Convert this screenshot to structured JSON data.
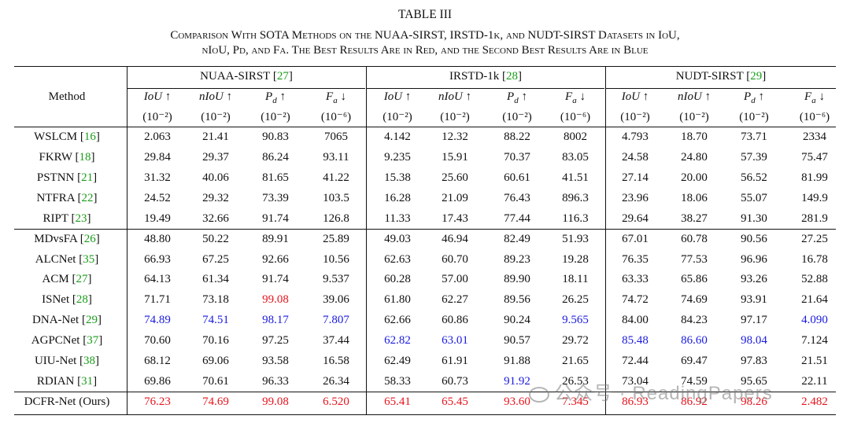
{
  "table_label": "TABLE III",
  "caption_line1": "Comparison With SOTA Methods on the NUAA-SIRST, IRSTD-1k, and NUDT-SIRST Datasets in IoU,",
  "caption_line2": "nIoU, Pd, and Fa. The Best Results Are in Red, and the Second Best Results Are in Blue",
  "header": {
    "method": "Method",
    "groups": [
      {
        "name": "NUAA-SIRST",
        "ref": "27"
      },
      {
        "name": "IRSTD-1k",
        "ref": "28"
      },
      {
        "name": "NUDT-SIRST",
        "ref": "29"
      }
    ],
    "metrics": [
      "IoU ↑",
      "nIoU ↑",
      "Pd ↑",
      "Fa ↓"
    ],
    "units": [
      "(10⁻²)",
      "(10⁻²)",
      "(10⁻²)",
      "(10⁻⁶)"
    ]
  },
  "rows": [
    {
      "method": "WSLCM",
      "ref": "16",
      "values": [
        "2.063",
        "21.41",
        "90.83",
        "7065",
        "4.142",
        "12.32",
        "88.22",
        "8002",
        "4.793",
        "18.70",
        "73.71",
        "2334"
      ],
      "colors": [
        "",
        "",
        "",
        "",
        "",
        "",
        "",
        "",
        "",
        "",
        "",
        ""
      ]
    },
    {
      "method": "FKRW",
      "ref": "18",
      "values": [
        "29.84",
        "29.37",
        "86.24",
        "93.11",
        "9.235",
        "15.91",
        "70.37",
        "83.05",
        "24.58",
        "24.80",
        "57.39",
        "75.47"
      ],
      "colors": [
        "",
        "",
        "",
        "",
        "",
        "",
        "",
        "",
        "",
        "",
        "",
        ""
      ]
    },
    {
      "method": "PSTNN",
      "ref": "21",
      "values": [
        "31.32",
        "40.06",
        "81.65",
        "41.22",
        "15.38",
        "25.60",
        "60.61",
        "41.51",
        "27.14",
        "20.00",
        "56.52",
        "81.99"
      ],
      "colors": [
        "",
        "",
        "",
        "",
        "",
        "",
        "",
        "",
        "",
        "",
        "",
        ""
      ]
    },
    {
      "method": "NTFRA",
      "ref": "22",
      "values": [
        "24.52",
        "29.32",
        "73.39",
        "103.5",
        "16.28",
        "21.09",
        "76.43",
        "896.3",
        "23.96",
        "18.06",
        "55.07",
        "149.9"
      ],
      "colors": [
        "",
        "",
        "",
        "",
        "",
        "",
        "",
        "",
        "",
        "",
        "",
        ""
      ]
    },
    {
      "method": "RIPT",
      "ref": "23",
      "values": [
        "19.49",
        "32.66",
        "91.74",
        "126.8",
        "11.33",
        "17.43",
        "77.44",
        "116.3",
        "29.64",
        "38.27",
        "91.30",
        "281.9"
      ],
      "colors": [
        "",
        "",
        "",
        "",
        "",
        "",
        "",
        "",
        "",
        "",
        "",
        ""
      ]
    },
    {
      "method": "MDvsFA",
      "ref": "26",
      "values": [
        "48.80",
        "50.22",
        "89.91",
        "25.89",
        "49.03",
        "46.94",
        "82.49",
        "51.93",
        "67.01",
        "60.78",
        "90.56",
        "27.25"
      ],
      "colors": [
        "",
        "",
        "",
        "",
        "",
        "",
        "",
        "",
        "",
        "",
        "",
        ""
      ]
    },
    {
      "method": "ALCNet",
      "ref": "35",
      "values": [
        "66.93",
        "67.25",
        "92.66",
        "10.56",
        "62.63",
        "60.70",
        "89.23",
        "19.28",
        "76.35",
        "77.53",
        "96.96",
        "16.78"
      ],
      "colors": [
        "",
        "",
        "",
        "",
        "",
        "",
        "",
        "",
        "",
        "",
        "",
        ""
      ]
    },
    {
      "method": "ACM",
      "ref": "27",
      "values": [
        "64.13",
        "61.34",
        "91.74",
        "9.537",
        "60.28",
        "57.00",
        "89.90",
        "18.11",
        "63.33",
        "65.86",
        "93.26",
        "52.88"
      ],
      "colors": [
        "",
        "",
        "",
        "",
        "",
        "",
        "",
        "",
        "",
        "",
        "",
        ""
      ]
    },
    {
      "method": "ISNet",
      "ref": "28",
      "values": [
        "71.71",
        "73.18",
        "99.08",
        "39.06",
        "61.80",
        "62.27",
        "89.56",
        "26.25",
        "74.72",
        "74.69",
        "93.91",
        "21.64"
      ],
      "colors": [
        "",
        "",
        "red",
        "",
        "",
        "",
        "",
        "",
        "",
        "",
        "",
        ""
      ]
    },
    {
      "method": "DNA-Net",
      "ref": "29",
      "values": [
        "74.89",
        "74.51",
        "98.17",
        "7.807",
        "62.66",
        "60.86",
        "90.24",
        "9.565",
        "84.00",
        "84.23",
        "97.17",
        "4.090"
      ],
      "colors": [
        "blue",
        "blue",
        "blue",
        "blue",
        "",
        "",
        "",
        "blue",
        "",
        "",
        "",
        "blue"
      ]
    },
    {
      "method": "AGPCNet",
      "ref": "37",
      "values": [
        "70.60",
        "70.16",
        "97.25",
        "37.44",
        "62.82",
        "63.01",
        "90.57",
        "29.72",
        "85.48",
        "86.60",
        "98.04",
        "7.124"
      ],
      "colors": [
        "",
        "",
        "",
        "",
        "blue",
        "blue",
        "",
        "",
        "blue",
        "blue",
        "blue",
        ""
      ]
    },
    {
      "method": "UIU-Net",
      "ref": "38",
      "values": [
        "68.12",
        "69.06",
        "93.58",
        "16.58",
        "62.49",
        "61.91",
        "91.88",
        "21.65",
        "72.44",
        "69.47",
        "97.83",
        "21.51"
      ],
      "colors": [
        "",
        "",
        "",
        "",
        "",
        "",
        "",
        "",
        "",
        "",
        "",
        ""
      ]
    },
    {
      "method": "RDIAN",
      "ref": "31",
      "values": [
        "69.86",
        "70.61",
        "96.33",
        "26.34",
        "58.33",
        "60.73",
        "91.92",
        "26.53",
        "73.04",
        "74.59",
        "95.65",
        "22.11"
      ],
      "colors": [
        "",
        "",
        "",
        "",
        "",
        "",
        "blue",
        "",
        "",
        "",
        "",
        ""
      ]
    },
    {
      "method": "DCFR-Net (Ours)",
      "ref": "",
      "values": [
        "76.23",
        "74.69",
        "99.08",
        "6.520",
        "65.41",
        "65.45",
        "93.60",
        "7.345",
        "86.93",
        "86.92",
        "98.26",
        "2.482"
      ],
      "colors": [
        "red",
        "red",
        "red",
        "red",
        "red",
        "red",
        "red",
        "red",
        "red",
        "red",
        "red",
        "red"
      ]
    }
  ],
  "watermark": "公众号 · ReadingPapers"
}
